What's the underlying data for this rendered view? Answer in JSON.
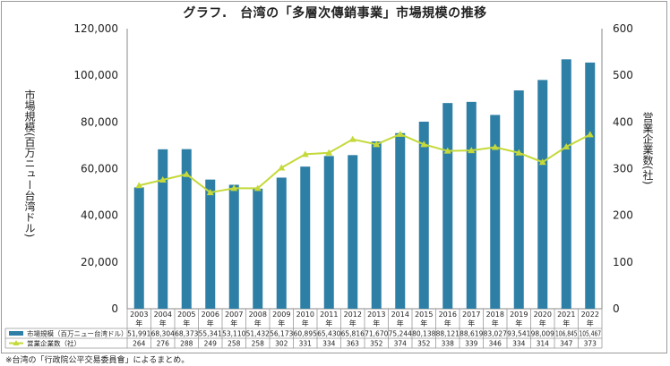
{
  "title": "グラフ.　台湾の「多層次傳銷事業」市場規模の推移",
  "note": "※台湾の「行政院公平交易委員會」によるまとめ。",
  "chart_data": {
    "type": "bar",
    "title": "グラフ.　台湾の「多層次傳銷事業」市場規模の推移",
    "categories": [
      "2003",
      "2004",
      "2005",
      "2006",
      "2007",
      "2008",
      "2009",
      "2010",
      "2011",
      "2012",
      "2013",
      "2014",
      "2015",
      "2016",
      "2017",
      "2018",
      "2019",
      "2020",
      "2021",
      "2022"
    ],
    "category_suffix": "年",
    "ylabel_left": "市場規模(百万ニュー台湾ドル)",
    "ylabel_right": "営業企業数(社)",
    "ylim_left": [
      0,
      120000
    ],
    "ylim_right": [
      0,
      600
    ],
    "yticks_left": [
      "0",
      "20,000",
      "40,000",
      "60,000",
      "80,000",
      "100,000",
      "120,000"
    ],
    "yticks_right": [
      "0",
      "100",
      "200",
      "300",
      "400",
      "500",
      "600"
    ],
    "series": [
      {
        "name": "市場規模（百万ニュー台湾ドル）",
        "type": "bar",
        "axis": "left",
        "color": "#2e7fa6",
        "values": [
          51991,
          68304,
          68373,
          55341,
          53110,
          51432,
          56173,
          60895,
          65430,
          65816,
          71670,
          75244,
          80138,
          88121,
          88619,
          83027,
          93541,
          98009,
          106845,
          105467
        ],
        "labels": [
          "51,991",
          "68,304",
          "68,373",
          "55,341",
          "53,110",
          "51,432",
          "56,173",
          "60,895",
          "65,430",
          "65,816",
          "71,670",
          "75,244",
          "80,138",
          "88,121",
          "88,619",
          "83,027",
          "93,541",
          "98,009",
          "106,845",
          "105,467"
        ]
      },
      {
        "name": "営業企業数（社）",
        "type": "line",
        "axis": "right",
        "color": "#c5d93a",
        "values": [
          264,
          276,
          288,
          249,
          258,
          258,
          302,
          331,
          334,
          363,
          352,
          374,
          352,
          338,
          339,
          346,
          334,
          314,
          347,
          373
        ],
        "labels": [
          "264",
          "276",
          "288",
          "249",
          "258",
          "258",
          "302",
          "331",
          "334",
          "363",
          "352",
          "374",
          "352",
          "338",
          "339",
          "346",
          "334",
          "314",
          "347",
          "373"
        ]
      }
    ],
    "grid": false,
    "legend": "bottom-left table"
  }
}
